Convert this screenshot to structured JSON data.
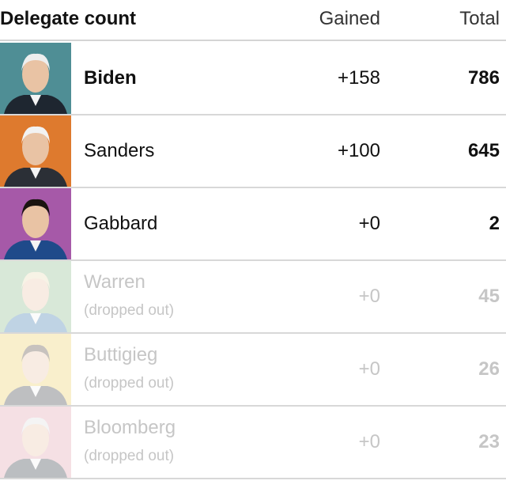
{
  "header": {
    "title": "Delegate count",
    "gained": "Gained",
    "total": "Total"
  },
  "rows": [
    {
      "name": "Biden",
      "gained": "+158",
      "total": 786
    },
    {
      "name": "Sanders",
      "gained": "+100",
      "total": 645
    },
    {
      "name": "Gabbard",
      "gained": "+0",
      "total": 2
    },
    {
      "name": "Warren",
      "status": "(dropped out)",
      "gained": "+0",
      "total": 45
    },
    {
      "name": "Buttigieg",
      "status": "(dropped out)",
      "gained": "+0",
      "total": 26
    },
    {
      "name": "Bloomberg",
      "status": "(dropped out)",
      "gained": "+0",
      "total": 23
    }
  ]
}
